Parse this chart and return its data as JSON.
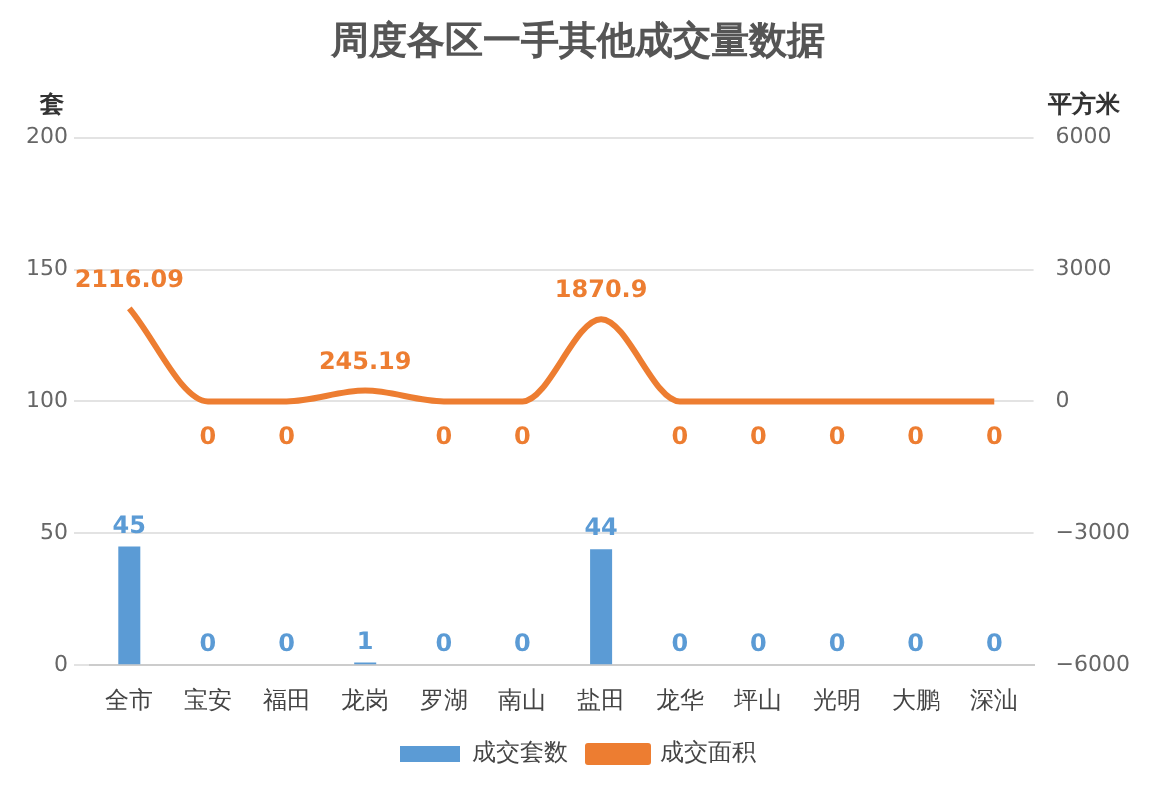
{
  "chart_data": {
    "type": "bar",
    "title": "周度各区一手其他成交量数据",
    "ylabel": "套",
    "y2label": "平方米",
    "categories": [
      "全市",
      "宝安",
      "福田",
      "龙岗",
      "罗湖",
      "南山",
      "盐田",
      "龙华",
      "坪山",
      "光明",
      "大鹏",
      "深汕"
    ],
    "series": [
      {
        "name": "成交套数",
        "color": "#5b9bd5",
        "values": [
          45,
          0,
          0,
          1,
          0,
          0,
          44,
          0,
          0,
          0,
          0,
          0
        ]
      },
      {
        "name": "成交面积",
        "type": "line",
        "axis": "y2",
        "color": "#ed7d31",
        "values": [
          2116.09,
          0,
          0,
          245.19,
          0,
          0,
          1870.9,
          0,
          0,
          0,
          0,
          0
        ]
      }
    ],
    "ylim": [
      0,
      200
    ],
    "yticks": [
      0,
      50,
      100,
      150,
      200
    ],
    "y2lim": [
      -6000,
      6000
    ],
    "y2ticks": [
      {
        "value": -6000,
        "label": "−6000"
      },
      {
        "value": -3000,
        "label": "−3000"
      },
      0,
      3000,
      6000
    ],
    "grid": "y",
    "legend": "bottom",
    "data_labels": true,
    "marker": "none"
  }
}
